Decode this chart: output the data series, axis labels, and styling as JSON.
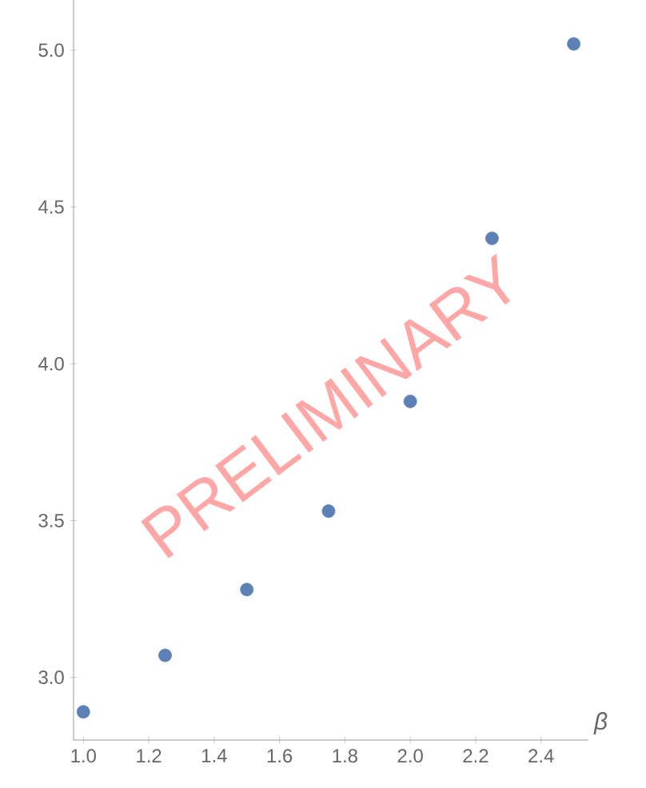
{
  "chart_data": {
    "type": "scatter",
    "xlabel": "β",
    "x": [
      1.0,
      1.25,
      1.5,
      1.75,
      2.0,
      2.25,
      2.5
    ],
    "values": [
      2.89,
      3.07,
      3.28,
      3.53,
      3.88,
      4.4,
      5.02
    ],
    "color": "#5e81b5",
    "xlim": [
      0.97,
      2.545
    ],
    "ylim": [
      2.8,
      5.16
    ],
    "xticks": [
      {
        "value": 1.0,
        "label": "1.0"
      },
      1.2,
      1.4,
      1.6,
      1.8,
      {
        "value": 2.0,
        "label": "2.0"
      },
      2.2,
      2.4
    ],
    "yticks": [
      {
        "value": 3.0,
        "label": "3.0"
      },
      3.5,
      {
        "value": 4.0,
        "label": "4.0"
      },
      4.5,
      {
        "value": 5.0,
        "label": "5.0"
      }
    ],
    "annotations": [
      "PRELIMINARY"
    ]
  }
}
